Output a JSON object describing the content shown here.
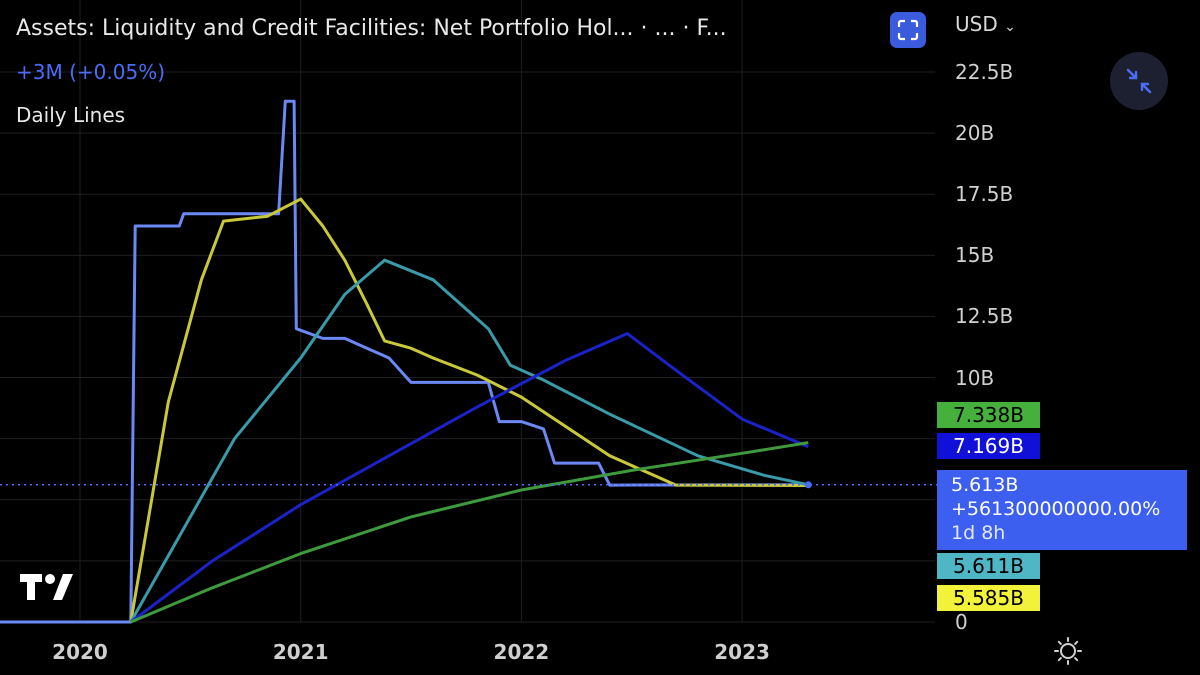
{
  "header": {
    "title": "Assets: Liquidity and Credit Facilities: Net Portfolio Hol...  · ...  · F...",
    "change": "+3M (+0.05%)",
    "lines_label": "Daily Lines",
    "currency": "USD"
  },
  "icons": {
    "fullscreen": "fullscreen-icon",
    "collapse": "collapse-arrows-icon",
    "logo": "tradingview-logo",
    "settings": "gear-icon"
  },
  "colors": {
    "background": "#000000",
    "grid": "#1e1e1e",
    "price_line": "#4a6cf7"
  },
  "chart_data": {
    "type": "line",
    "x_ticks": [
      "2020",
      "2021",
      "2022",
      "2023"
    ],
    "y_ticks": [
      "0",
      "10B",
      "12.5B",
      "15B",
      "17.5B",
      "20B",
      "22.5B"
    ],
    "ylim": [
      0,
      22.5
    ],
    "y_unit": "B",
    "series": [
      {
        "color": "#6b88f5",
        "points": [
          [
            2019.5,
            0
          ],
          [
            2020.23,
            0
          ],
          [
            2020.25,
            16.2
          ],
          [
            2020.45,
            16.2
          ],
          [
            2020.47,
            16.7
          ],
          [
            2020.9,
            16.7
          ],
          [
            2020.93,
            21.3
          ],
          [
            2020.97,
            21.3
          ],
          [
            2020.98,
            12
          ],
          [
            2021.1,
            11.6
          ],
          [
            2021.2,
            11.6
          ],
          [
            2021.3,
            11.2
          ],
          [
            2021.4,
            10.8
          ],
          [
            2021.5,
            9.8
          ],
          [
            2021.85,
            9.8
          ],
          [
            2021.9,
            8.2
          ],
          [
            2022.0,
            8.2
          ],
          [
            2022.1,
            7.9
          ],
          [
            2022.15,
            6.5
          ],
          [
            2022.35,
            6.5
          ],
          [
            2022.4,
            5.6
          ],
          [
            2023.3,
            5.613
          ]
        ]
      },
      {
        "color": "#c8c83a",
        "points": [
          [
            2020.23,
            0
          ],
          [
            2020.4,
            9
          ],
          [
            2020.55,
            14
          ],
          [
            2020.65,
            16.4
          ],
          [
            2020.85,
            16.6
          ],
          [
            2021.0,
            17.3
          ],
          [
            2021.1,
            16.2
          ],
          [
            2021.2,
            14.8
          ],
          [
            2021.3,
            13
          ],
          [
            2021.38,
            11.5
          ],
          [
            2021.5,
            11.2
          ],
          [
            2021.6,
            10.8
          ],
          [
            2021.8,
            10.1
          ],
          [
            2022.0,
            9.2
          ],
          [
            2022.2,
            8
          ],
          [
            2022.4,
            6.8
          ],
          [
            2022.6,
            6
          ],
          [
            2022.7,
            5.6
          ],
          [
            2023.3,
            5.585
          ]
        ]
      },
      {
        "color": "#3a9aaa",
        "points": [
          [
            2020.23,
            0
          ],
          [
            2020.45,
            3.5
          ],
          [
            2020.7,
            7.5
          ],
          [
            2021.0,
            10.8
          ],
          [
            2021.2,
            13.4
          ],
          [
            2021.38,
            14.8
          ],
          [
            2021.6,
            14
          ],
          [
            2021.85,
            12
          ],
          [
            2021.95,
            10.5
          ],
          [
            2022.1,
            9.9
          ],
          [
            2022.4,
            8.5
          ],
          [
            2022.8,
            6.8
          ],
          [
            2023.1,
            6
          ],
          [
            2023.3,
            5.611
          ]
        ]
      },
      {
        "color": "#1a22c8",
        "points": [
          [
            2020.23,
            0
          ],
          [
            2020.6,
            2.5
          ],
          [
            2021.0,
            4.8
          ],
          [
            2021.4,
            6.8
          ],
          [
            2021.8,
            8.8
          ],
          [
            2022.2,
            10.7
          ],
          [
            2022.48,
            11.8
          ],
          [
            2022.7,
            10.3
          ],
          [
            2023.0,
            8.3
          ],
          [
            2023.3,
            7.169
          ]
        ]
      },
      {
        "color": "#3e9a3c",
        "points": [
          [
            2020.23,
            0
          ],
          [
            2020.6,
            1.4
          ],
          [
            2021.0,
            2.8
          ],
          [
            2021.5,
            4.3
          ],
          [
            2022.0,
            5.4
          ],
          [
            2022.5,
            6.2
          ],
          [
            2023.0,
            6.9
          ],
          [
            2023.3,
            7.338
          ]
        ]
      }
    ],
    "last_value_tags": [
      {
        "label": "7.338B",
        "value": 7.338,
        "color": "#45b03c"
      },
      {
        "label": "7.169B",
        "value": 7.169,
        "color": "#1010d8"
      },
      {
        "label": "5.611B",
        "value": 5.611,
        "color": "#4fb6c6"
      },
      {
        "label": "5.585B",
        "value": 5.585,
        "color": "#f2f23a"
      }
    ],
    "price_tag": {
      "value": 5.613,
      "line1": "5.613B",
      "line2": "+561300000000.00%",
      "line3": "1d 8h"
    }
  }
}
